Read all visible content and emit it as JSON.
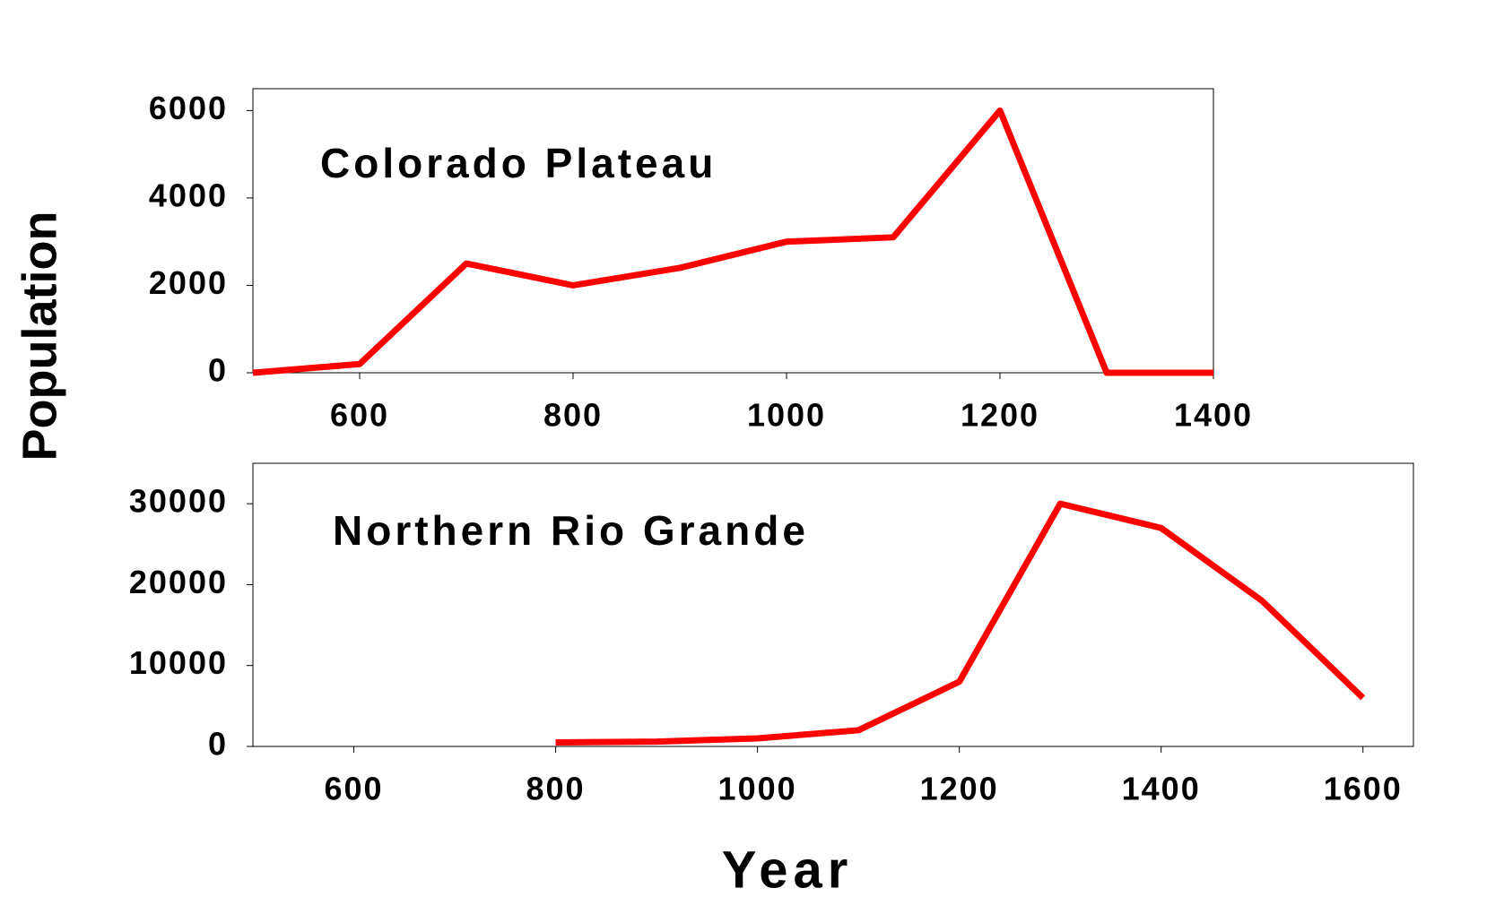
{
  "chart_data": [
    {
      "type": "line",
      "title": "Colorado Plateau",
      "ylabel": "Population",
      "x": [
        500,
        600,
        700,
        800,
        900,
        1000,
        1100,
        1200,
        1300,
        1400
      ],
      "values": [
        0,
        200,
        2500,
        2000,
        2400,
        3000,
        3100,
        6000,
        0,
        0
      ],
      "color": "#ff0000",
      "xlim": [
        500,
        1400
      ],
      "xticks": [
        600,
        800,
        1000,
        1200,
        1400
      ],
      "ylim": [
        0,
        6500
      ],
      "yticks": [
        0,
        2000,
        4000,
        6000
      ]
    },
    {
      "type": "line",
      "title": "Northern Rio Grande",
      "xlabel": "Year",
      "x": [
        800,
        900,
        1000,
        1100,
        1200,
        1300,
        1400,
        1500,
        1600
      ],
      "values": [
        500,
        600,
        1000,
        2000,
        8000,
        30000,
        27000,
        18000,
        6000
      ],
      "color": "#ff0000",
      "xlim": [
        500,
        1650
      ],
      "xticks": [
        600,
        800,
        1000,
        1200,
        1400,
        1600
      ],
      "ylim": [
        0,
        35000
      ],
      "yticks": [
        0,
        10000,
        20000,
        30000
      ]
    }
  ]
}
